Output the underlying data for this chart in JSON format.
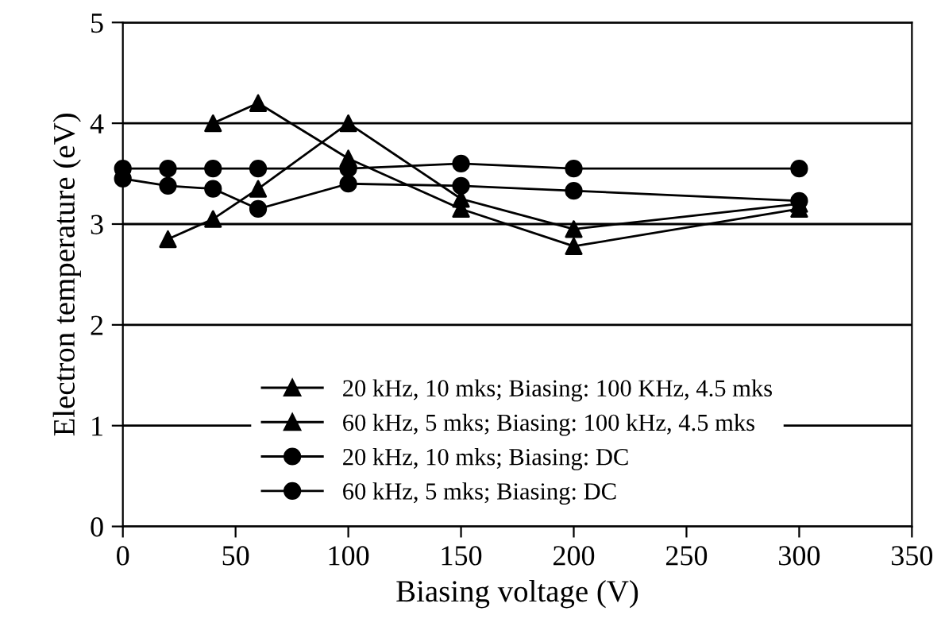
{
  "chart_data": {
    "type": "line",
    "xlabel": "Biasing voltage (V)",
    "ylabel": "Electron temperature (eV)",
    "x": [
      0,
      20,
      40,
      60,
      100,
      150,
      200,
      300
    ],
    "series": [
      {
        "name": "20 kHz, 10 mks; Biasing: 100 KHz, 4.5 mks",
        "color": "#000000",
        "marker": "triangle",
        "values": [
          null,
          null,
          4.0,
          4.2,
          3.65,
          3.15,
          2.78,
          3.15
        ]
      },
      {
        "name": "60 kHz, 5 mks; Biasing: 100 kHz, 4.5 mks",
        "color": "#000000",
        "marker": "triangle",
        "values": [
          null,
          2.85,
          3.05,
          3.35,
          4.0,
          3.25,
          2.95,
          3.2
        ]
      },
      {
        "name": "20 kHz, 10 mks; Biasing: DC",
        "color": "#000000",
        "marker": "circle",
        "values": [
          3.55,
          3.55,
          3.55,
          3.55,
          3.55,
          3.6,
          3.55,
          3.55
        ]
      },
      {
        "name": "60 kHz, 5 mks; Biasing: DC",
        "color": "#000000",
        "marker": "circle",
        "values": [
          3.45,
          3.38,
          3.35,
          3.15,
          3.4,
          3.38,
          3.33,
          3.23
        ]
      }
    ],
    "xlim": [
      0,
      350
    ],
    "xticks": [
      0,
      50,
      100,
      150,
      200,
      250,
      300,
      350
    ],
    "ylim": [
      0,
      5
    ],
    "yticks": [
      0,
      1,
      2,
      3,
      4,
      5
    ],
    "grid": "y",
    "legend": "bottom"
  }
}
